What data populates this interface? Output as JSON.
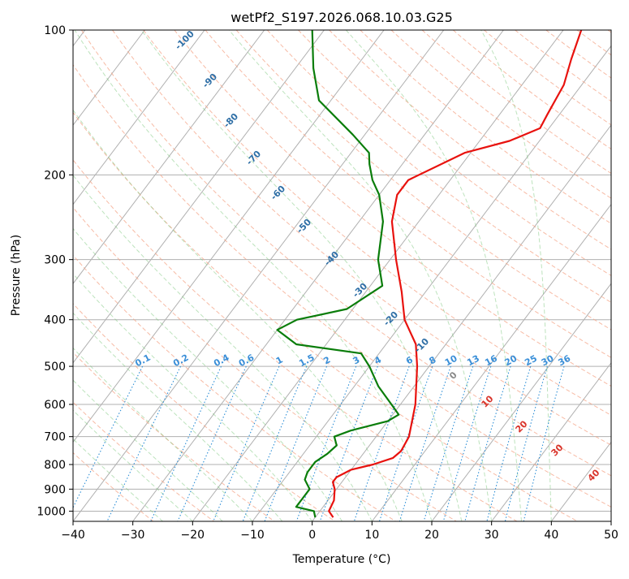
{
  "chart_data": {
    "type": "line",
    "subtype": "skew-t log-p diagram",
    "title": "wetPf2_S197.2026.068.10.03.G25",
    "xlabel": "Temperature (°C)",
    "ylabel": "Pressure (hPa)",
    "xlim": [
      -40,
      50
    ],
    "ylim": [
      1050,
      100
    ],
    "x_ticks": [
      -40,
      -30,
      -20,
      -10,
      0,
      10,
      20,
      30,
      40,
      50
    ],
    "x_tick_labels": [
      "−40",
      "−30",
      "−20",
      "−10",
      "0",
      "10",
      "20",
      "30",
      "40",
      "50"
    ],
    "y_ticks": [
      100,
      200,
      300,
      400,
      500,
      600,
      700,
      800,
      900,
      1000
    ],
    "y_tick_labels": [
      "100",
      "200",
      "300",
      "400",
      "500",
      "600",
      "700",
      "800",
      "900",
      "1000"
    ],
    "series": [
      {
        "name": "Temperature",
        "color": "#e8120e",
        "points": [
          [
            1030,
            3.0
          ],
          [
            1000,
            1.5
          ],
          [
            950,
            1.0
          ],
          [
            900,
            -0.3
          ],
          [
            870,
            -1.5
          ],
          [
            850,
            -1.5
          ],
          [
            820,
            0.0
          ],
          [
            800,
            3.0
          ],
          [
            775,
            5.5
          ],
          [
            750,
            6.0
          ],
          [
            700,
            5.5
          ],
          [
            600,
            2.5
          ],
          [
            500,
            -2.0
          ],
          [
            450,
            -5.0
          ],
          [
            400,
            -10.0
          ],
          [
            350,
            -14.0
          ],
          [
            300,
            -19.0
          ],
          [
            250,
            -24.5
          ],
          [
            220,
            -27.0
          ],
          [
            205,
            -27.0
          ],
          [
            180,
            -21.0
          ],
          [
            170,
            -15.0
          ],
          [
            160,
            -11.5
          ],
          [
            150,
            -12.0
          ],
          [
            130,
            -13.0
          ],
          [
            115,
            -15.0
          ],
          [
            100,
            -17.0
          ]
        ]
      },
      {
        "name": "Dewpoint",
        "color": "#0a7d0a",
        "points": [
          [
            1030,
            0.0
          ],
          [
            1000,
            -1.0
          ],
          [
            980,
            -4.5
          ],
          [
            940,
            -4.5
          ],
          [
            900,
            -4.5
          ],
          [
            860,
            -6.5
          ],
          [
            830,
            -7.0
          ],
          [
            790,
            -7.0
          ],
          [
            760,
            -6.0
          ],
          [
            730,
            -5.5
          ],
          [
            700,
            -7.0
          ],
          [
            680,
            -5.0
          ],
          [
            650,
            0.0
          ],
          [
            630,
            1.0
          ],
          [
            600,
            -1.5
          ],
          [
            550,
            -6.0
          ],
          [
            500,
            -10.0
          ],
          [
            470,
            -13.0
          ],
          [
            450,
            -25.0
          ],
          [
            420,
            -30.0
          ],
          [
            400,
            -28.0
          ],
          [
            380,
            -21.0
          ],
          [
            340,
            -18.0
          ],
          [
            300,
            -22.0
          ],
          [
            250,
            -26.0
          ],
          [
            220,
            -30.0
          ],
          [
            205,
            -33.0
          ],
          [
            190,
            -35.5
          ],
          [
            180,
            -37.0
          ],
          [
            165,
            -42.0
          ],
          [
            140,
            -52.0
          ],
          [
            120,
            -57.0
          ],
          [
            100,
            -62.0
          ]
        ]
      }
    ],
    "dry_adiabat_labels": [
      "-100",
      "-90",
      "-80",
      "-70",
      "-60",
      "-50",
      "-40",
      "-30",
      "-20",
      "-10",
      "0",
      "10",
      "20",
      "30",
      "40"
    ],
    "mixing_ratio_labels": [
      "0.1",
      "0.2",
      "0.4",
      "0.6",
      "1",
      "1.5",
      "2",
      "3",
      "4",
      "6",
      "8",
      "10",
      "13",
      "16",
      "20",
      "25",
      "30",
      "36"
    ]
  }
}
